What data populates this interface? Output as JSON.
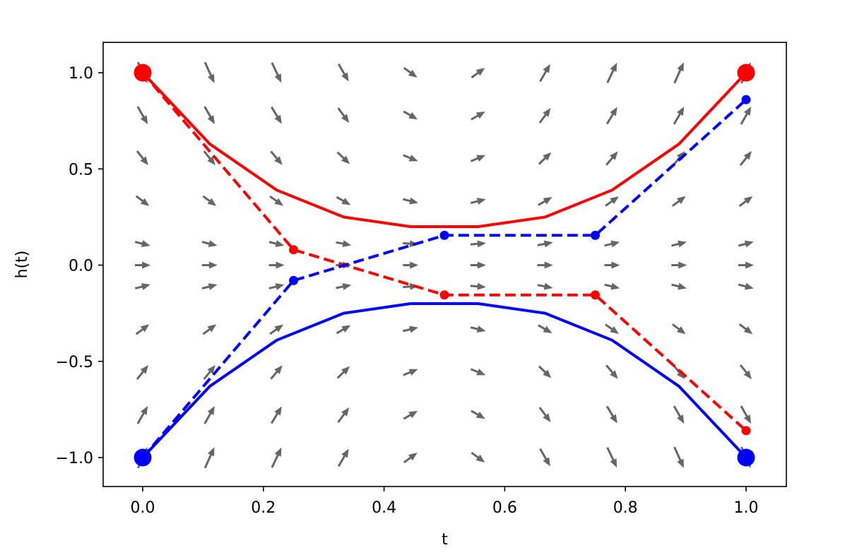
{
  "chart_data": {
    "type": "line",
    "xlabel": "t",
    "ylabel": "h(t)",
    "xlim": [
      -0.067,
      1.067
    ],
    "ylim": [
      -1.15,
      1.15
    ],
    "xticks": [
      0.0,
      0.2,
      0.4,
      0.6,
      0.8,
      1.0
    ],
    "xtick_labels": [
      "0.0",
      "0.2",
      "0.4",
      "0.6",
      "0.8",
      "1.0"
    ],
    "yticks": [
      1.0,
      0.5,
      0.0,
      -0.5,
      -1.0
    ],
    "ytick_labels": [
      "1.0",
      "0.5",
      "0.0",
      "−0.5",
      "−1.0"
    ],
    "grid": false,
    "legend": "none",
    "vector_field": {
      "color": "#666666",
      "description": "quiver plot of the flow dh/dt over a grid of t in [0,1] and h in [-1,1]",
      "t_grid": [
        0.0,
        0.111,
        0.222,
        0.333,
        0.444,
        0.556,
        0.667,
        0.778,
        0.889,
        1.0
      ],
      "h_grid": [
        1.0,
        0.778,
        0.556,
        0.333,
        0.111,
        0.0,
        -0.111,
        -0.333,
        -0.556,
        -0.778,
        -1.0
      ]
    },
    "series": [
      {
        "color": "#ff0000",
        "style": "solid",
        "x": [
          0.0,
          0.111,
          0.222,
          0.333,
          0.444,
          0.556,
          0.667,
          0.778,
          0.889,
          1.0
        ],
        "y": [
          1.0,
          0.63,
          0.39,
          0.25,
          0.2,
          0.2,
          0.25,
          0.39,
          0.63,
          1.0
        ]
      },
      {
        "color": "#0000ff",
        "style": "solid",
        "x": [
          0.0,
          0.111,
          0.222,
          0.333,
          0.444,
          0.556,
          0.667,
          0.778,
          0.889,
          1.0
        ],
        "y": [
          -1.0,
          -0.63,
          -0.39,
          -0.25,
          -0.2,
          -0.2,
          -0.25,
          -0.39,
          -0.63,
          -1.0
        ]
      },
      {
        "color": "#ff0000",
        "style": "dashed",
        "markers": true,
        "x": [
          0.0,
          0.25,
          0.5,
          0.75,
          1.0
        ],
        "y": [
          1.0,
          0.08,
          -0.155,
          -0.155,
          -0.86
        ]
      },
      {
        "color": "#0000ff",
        "style": "dashed",
        "markers": true,
        "x": [
          0.0,
          0.25,
          0.5,
          0.75,
          1.0
        ],
        "y": [
          -1.0,
          -0.08,
          0.155,
          0.155,
          0.86
        ]
      }
    ],
    "endpoints": [
      {
        "color": "#ff0000",
        "x": 0.0,
        "y": 1.0
      },
      {
        "color": "#ff0000",
        "x": 1.0,
        "y": 1.0
      },
      {
        "color": "#0000ff",
        "x": 0.0,
        "y": -1.0
      },
      {
        "color": "#0000ff",
        "x": 1.0,
        "y": -1.0
      }
    ]
  }
}
